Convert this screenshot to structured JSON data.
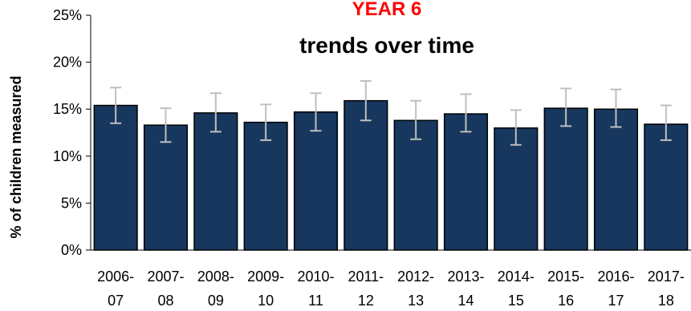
{
  "chart_data": {
    "type": "bar",
    "title_line1": "YEAR 6",
    "title_line2": "trends over time",
    "ylabel": "% of children measured",
    "xlabel": "",
    "categories": [
      [
        "2006-",
        "07"
      ],
      [
        "2007-",
        "08"
      ],
      [
        "2008-",
        "09"
      ],
      [
        "2009-",
        "10"
      ],
      [
        "2010-",
        "11"
      ],
      [
        "2011-",
        "12"
      ],
      [
        "2012-",
        "13"
      ],
      [
        "2013-",
        "14"
      ],
      [
        "2014-",
        "15"
      ],
      [
        "2015-",
        "16"
      ],
      [
        "2016-",
        "17"
      ],
      [
        "2017-",
        "18"
      ]
    ],
    "values": [
      15.4,
      13.3,
      14.6,
      13.6,
      14.7,
      15.9,
      13.8,
      14.5,
      13.0,
      15.1,
      15.0,
      13.4
    ],
    "error_low": [
      13.5,
      11.5,
      12.6,
      11.7,
      12.7,
      13.8,
      11.8,
      12.6,
      11.2,
      13.2,
      13.1,
      11.7
    ],
    "error_high": [
      17.3,
      15.1,
      16.7,
      15.5,
      16.7,
      18.0,
      15.9,
      16.6,
      14.9,
      17.2,
      17.1,
      15.4
    ],
    "ylim": [
      0,
      25
    ],
    "yticks": [
      "0%",
      "5%",
      "10%",
      "15%",
      "20%",
      "25%"
    ],
    "grid": false,
    "colors": {
      "bar_fill": "#17375e",
      "bar_stroke": "#000000",
      "error_bar": "#bfbfbf",
      "axis": "#000000",
      "title_highlight": "#ff0000"
    }
  }
}
